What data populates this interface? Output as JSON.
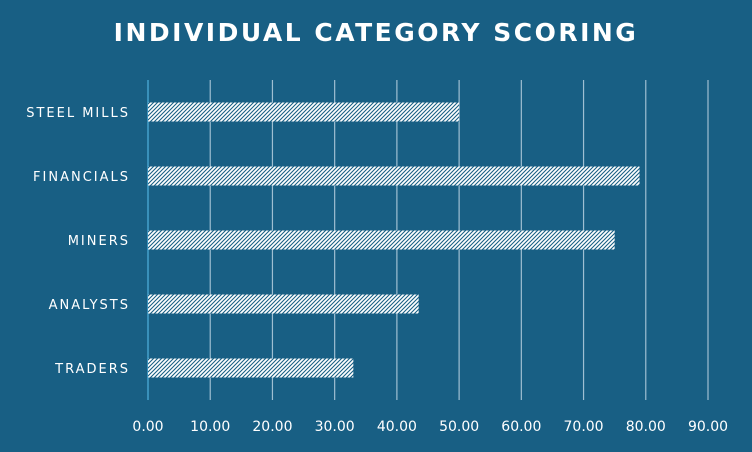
{
  "chart_data": {
    "type": "bar",
    "orientation": "horizontal",
    "title": "INDIVIDUAL CATEGORY SCORING",
    "categories": [
      "STEEL MILLS",
      "FINANCIALS",
      "MINERS",
      "ANALYSTS",
      "TRADERS"
    ],
    "values": [
      50.0,
      79.0,
      75.0,
      43.5,
      33.0
    ],
    "xlim": [
      0,
      90
    ],
    "x_ticks": [
      "0.00",
      "10.00",
      "20.00",
      "30.00",
      "40.00",
      "50.00",
      "60.00",
      "70.00",
      "80.00",
      "90.00"
    ],
    "grid": "vertical",
    "legend": "none",
    "colors": {
      "background": "#185f84",
      "bar_fill": "#ffffff",
      "bar_hatch": "#185f84",
      "grid": "#9fbfd2",
      "axis": "#4fb0de",
      "text": "#ffffff"
    }
  }
}
